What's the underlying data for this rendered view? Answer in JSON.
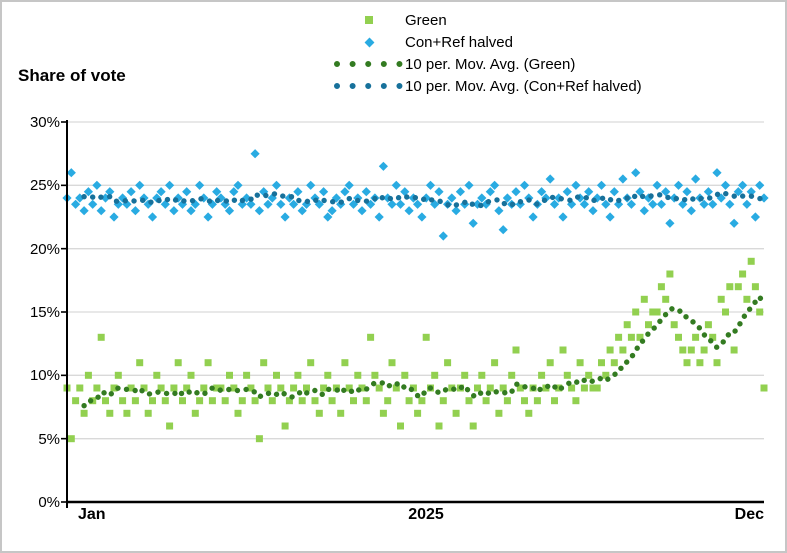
{
  "title": "Share of vote",
  "colors": {
    "green_points": "#92D050",
    "blue_points": "#29ABE2",
    "green_ma": "#337B21",
    "blue_ma": "#17719B",
    "gridline": "#D9D9D9",
    "axis": "#000000",
    "frame_border": "#C6C6C6"
  },
  "legend": {
    "items": [
      {
        "label": "Green",
        "marker": "square",
        "color": "#92D050"
      },
      {
        "label": "Con+Ref halved",
        "marker": "diamond",
        "color": "#29ABE2"
      },
      {
        "label": "10 per. Mov. Avg. (Green)",
        "marker": "dotted-line",
        "color": "#337B21"
      },
      {
        "label": "10 per. Mov. Avg. (Con+Ref halved)",
        "marker": "dotted-line",
        "color": "#17719B"
      }
    ]
  },
  "chart_data": {
    "type": "scatter",
    "title": "Share of vote",
    "ylabel": "Share of vote",
    "ylim": [
      0,
      30
    ],
    "grid": true,
    "legend_position": "top-center",
    "ytick_values": [
      0,
      5,
      10,
      15,
      20,
      25,
      30
    ],
    "ytick_labels": [
      "0%",
      "5%",
      "10%",
      "15%",
      "20%",
      "25%",
      "30%"
    ],
    "x_labels": [
      {
        "text": "Jan",
        "anchor": "start"
      },
      {
        "text": "2025",
        "anchor": "middle"
      },
      {
        "text": "Dec",
        "anchor": "end"
      }
    ],
    "x_span_note": "daily polls Jan-Dec 2025, evenly spaced",
    "series": [
      {
        "name": "Green",
        "type": "scatter",
        "marker": "square",
        "color": "#92D050",
        "unit": "%",
        "values": [
          9,
          5,
          8,
          9,
          7,
          10,
          8,
          9,
          13,
          8,
          7,
          9,
          10,
          8,
          7,
          9,
          8,
          11,
          9,
          7,
          8,
          10,
          9,
          8,
          6,
          9,
          11,
          8,
          9,
          10,
          7,
          8,
          9,
          11,
          8,
          9,
          9,
          8,
          10,
          9,
          7,
          8,
          10,
          9,
          8,
          5,
          11,
          9,
          8,
          10,
          9,
          6,
          8,
          9,
          10,
          8,
          9,
          11,
          8,
          7,
          9,
          10,
          8,
          9,
          7,
          11,
          9,
          8,
          10,
          9,
          8,
          13,
          10,
          9,
          7,
          8,
          11,
          9,
          6,
          10,
          8,
          9,
          7,
          8,
          13,
          9,
          10,
          6,
          8,
          11,
          9,
          7,
          9,
          10,
          8,
          6,
          9,
          10,
          8,
          9,
          11,
          7,
          9,
          8,
          10,
          12,
          9,
          8,
          7,
          9,
          8,
          10,
          9,
          11,
          8,
          9,
          12,
          10,
          9,
          8,
          11,
          9,
          10,
          9,
          9,
          11,
          10,
          12,
          11,
          13,
          12,
          14,
          13,
          15,
          13,
          16,
          14,
          15,
          15,
          17,
          16,
          18,
          14,
          13,
          12,
          11,
          12,
          13,
          11,
          12,
          14,
          13,
          11,
          16,
          15,
          17,
          12,
          17,
          18,
          16,
          19,
          17,
          15,
          9
        ]
      },
      {
        "name": "Con+Ref halved",
        "type": "scatter",
        "marker": "diamond",
        "color": "#29ABE2",
        "unit": "%",
        "values": [
          24,
          26,
          23.5,
          24,
          23,
          24.5,
          23.5,
          25,
          23,
          24,
          24.5,
          22.5,
          23.5,
          24,
          23.5,
          24.5,
          23,
          25,
          24,
          23.5,
          22.5,
          24,
          24.5,
          23.5,
          25,
          23,
          24,
          23.5,
          24.5,
          23,
          23.5,
          25,
          24,
          22.5,
          23.5,
          24.5,
          24,
          23.5,
          23,
          24.5,
          25,
          23.5,
          24,
          23.5,
          27.5,
          23,
          24.5,
          23.5,
          24,
          25,
          23.5,
          22.5,
          24,
          23.5,
          24.5,
          23,
          23.5,
          25,
          24,
          23.5,
          24.5,
          22.5,
          23,
          24,
          23.5,
          24.5,
          25,
          23.5,
          24,
          23,
          24.5,
          23.5,
          24,
          22.5,
          26.5,
          24,
          23.5,
          25,
          23.5,
          24.5,
          23,
          24,
          23.5,
          22.5,
          24,
          25,
          23.5,
          24.5,
          21,
          23.5,
          24,
          23,
          24.5,
          23.5,
          25,
          22,
          23.5,
          24,
          23.5,
          24.5,
          25,
          23,
          21.5,
          24,
          23.5,
          24.5,
          23.5,
          25,
          24,
          22.5,
          23.5,
          24.5,
          24,
          25.5,
          23.5,
          24,
          22.5,
          24.5,
          23.5,
          25,
          24,
          23.5,
          24.5,
          23,
          24,
          25,
          23.5,
          22.5,
          24.5,
          23.5,
          25.5,
          24,
          23.5,
          26,
          24.5,
          23,
          24,
          23.5,
          25,
          23.5,
          24.5,
          22,
          24,
          25,
          23.5,
          24.5,
          23,
          25.5,
          24,
          23.5,
          24.5,
          23.5,
          26,
          24,
          25,
          23.5,
          22,
          24.5,
          25,
          23.5,
          24.5,
          22.5,
          25,
          24
        ]
      },
      {
        "name": "10 per. Mov. Avg. (Green)",
        "type": "moving_average",
        "window": 10,
        "source": 0,
        "color": "#337B21"
      },
      {
        "name": "10 per. Mov. Avg. (Con+Ref halved)",
        "type": "moving_average",
        "window": 10,
        "source": 1,
        "color": "#17719B"
      }
    ]
  }
}
